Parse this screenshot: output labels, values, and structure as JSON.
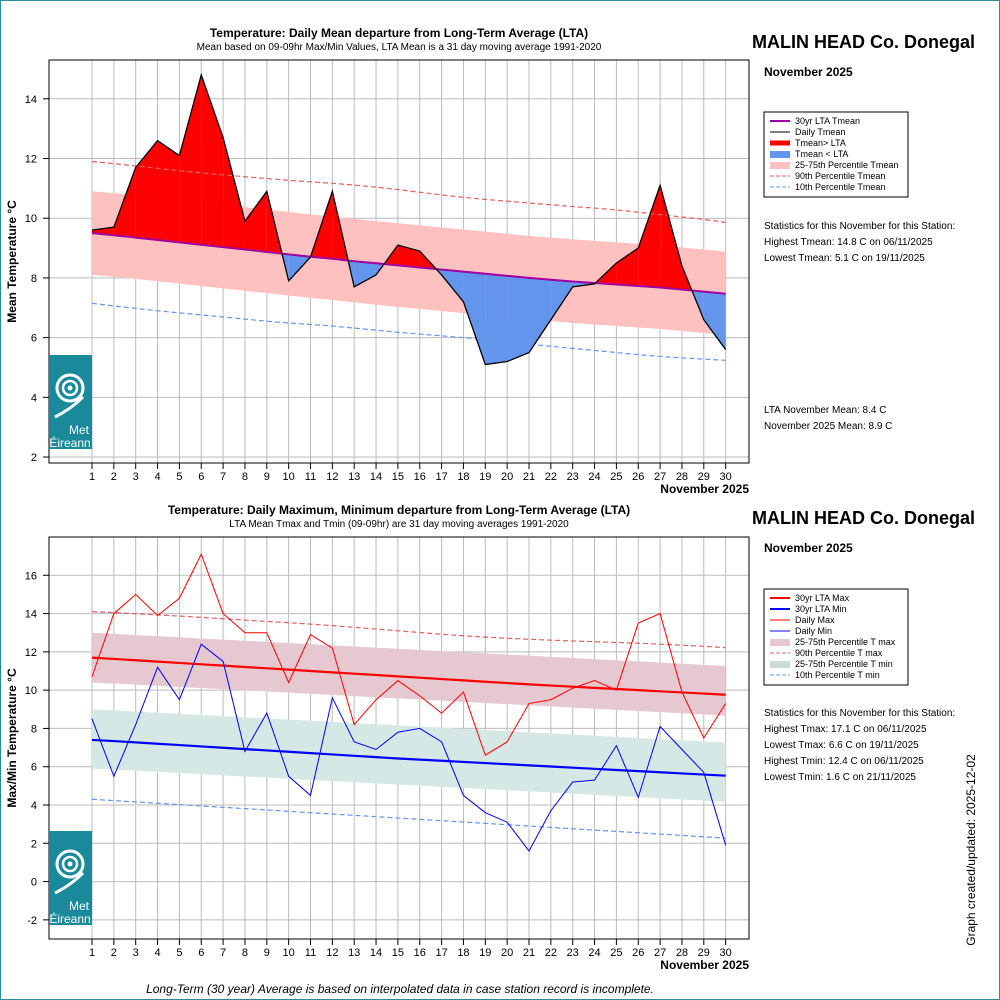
{
  "station": "MALIN HEAD Co. Donegal",
  "month": "November 2025",
  "xaxis_label": "November 2025",
  "footnote": "Long-Term (30 year) Average is based on interpolated data in case station record is incomplete.",
  "credit": "Graph created/updated:  2025-12-02",
  "logo_text": [
    "Met",
    "Éireann"
  ],
  "colors": {
    "above": "#ff0000",
    "below": "#6495ed",
    "band1": "#ffc0c0",
    "lta_mean": "#a000a0",
    "max": "#ff0000",
    "min": "#0000ff",
    "band_max": "#e5c8d0",
    "band_min": "#d5e8e5",
    "logo": "#1a8a9a"
  },
  "chart_data": [
    {
      "type": "area",
      "title": "Temperature: Daily Mean departure from Long-Term Average (LTA)",
      "subtitle": "Mean based on 09-09hr Max/Min Values, LTA Mean is a 31 day moving average 1991-2020",
      "ylabel": "Mean Temperature °C",
      "xlabel": "November 2025",
      "ylim": [
        1.8,
        15.3
      ],
      "yticks": [
        2,
        4,
        6,
        8,
        10,
        12,
        14
      ],
      "x": [
        1,
        2,
        3,
        4,
        5,
        6,
        7,
        8,
        9,
        10,
        11,
        12,
        13,
        14,
        15,
        16,
        17,
        18,
        19,
        20,
        21,
        22,
        23,
        24,
        25,
        26,
        27,
        28,
        29,
        30
      ],
      "series": [
        {
          "name": "Daily Tmean",
          "values": [
            9.6,
            9.7,
            11.7,
            12.6,
            12.1,
            14.8,
            12.7,
            9.9,
            10.9,
            7.9,
            8.7,
            10.9,
            7.7,
            8.1,
            9.1,
            8.9,
            8.1,
            7.2,
            5.1,
            5.2,
            5.5,
            6.6,
            7.7,
            7.8,
            8.5,
            9.0,
            11.1,
            8.4,
            6.6,
            5.6
          ]
        },
        {
          "name": "30yr LTA Tmean",
          "values": [
            9.5,
            9.43,
            9.35,
            9.27,
            9.19,
            9.11,
            9.03,
            8.95,
            8.87,
            8.79,
            8.71,
            8.64,
            8.56,
            8.49,
            8.42,
            8.35,
            8.28,
            8.21,
            8.14,
            8.07,
            8.0,
            7.94,
            7.88,
            7.83,
            7.78,
            7.73,
            7.68,
            7.61,
            7.54,
            7.47
          ]
        },
        {
          "name": "25-75th Percentile Tmean",
          "low": [
            8.1,
            8.04,
            7.97,
            7.89,
            7.81,
            7.73,
            7.65,
            7.57,
            7.49,
            7.41,
            7.33,
            7.26,
            7.18,
            7.1,
            7.03,
            6.96,
            6.89,
            6.82,
            6.75,
            6.68,
            6.61,
            6.55,
            6.49,
            6.44,
            6.39,
            6.34,
            6.29,
            6.22,
            6.15,
            6.1
          ],
          "high": [
            10.9,
            10.84,
            10.77,
            10.69,
            10.61,
            10.53,
            10.45,
            10.37,
            10.29,
            10.21,
            10.13,
            10.06,
            9.98,
            9.9,
            9.83,
            9.76,
            9.69,
            9.62,
            9.55,
            9.48,
            9.41,
            9.35,
            9.29,
            9.24,
            9.19,
            9.14,
            9.09,
            9.02,
            8.95,
            8.88
          ]
        },
        {
          "name": "90th Percentile Tmean",
          "values": [
            11.9,
            11.83,
            11.75,
            11.67,
            11.59,
            11.52,
            11.45,
            11.39,
            11.33,
            11.27,
            11.22,
            11.17,
            11.11,
            11.04,
            10.96,
            10.87,
            10.78,
            10.7,
            10.63,
            10.57,
            10.51,
            10.45,
            10.39,
            10.34,
            10.28,
            10.2,
            10.12,
            10.04,
            9.96,
            9.86
          ]
        },
        {
          "name": "10th Percentile Tmean",
          "values": [
            7.15,
            7.06,
            6.98,
            6.9,
            6.83,
            6.76,
            6.69,
            6.62,
            6.55,
            6.49,
            6.44,
            6.39,
            6.32,
            6.25,
            6.18,
            6.12,
            6.06,
            6.0,
            5.93,
            5.85,
            5.78,
            5.71,
            5.64,
            5.57,
            5.5,
            5.43,
            5.37,
            5.32,
            5.28,
            5.24
          ]
        }
      ],
      "legend": [
        "30yr LTA Tmean",
        "Daily Tmean",
        "Tmean> LTA",
        "Tmean < LTA",
        "25-75th Percentile Tmean",
        "90th Percentile Tmean",
        "10th Percentile Tmean"
      ],
      "stats_heading": "Statistics for this November for this Station:",
      "stats": [
        "Highest Tmean: 14.8 C on 06/11/2025",
        "Lowest Tmean: 5.1 C on 19/11/2025"
      ],
      "summary": [
        "LTA November Mean: 8.4 C",
        "November 2025 Mean: 8.9 C"
      ]
    },
    {
      "type": "line",
      "title": "Temperature: Daily Maximum, Minimum departure from Long-Term Average (LTA)",
      "subtitle": "LTA Mean Tmax and Tmin (09-09hr) are 31 day moving averages 1991-2020",
      "ylabel": "Max/Min Temperature °C",
      "xlabel": "November 2025",
      "ylim": [
        -3,
        18
      ],
      "yticks": [
        -2,
        0,
        2,
        4,
        6,
        8,
        10,
        12,
        14,
        16
      ],
      "x": [
        1,
        2,
        3,
        4,
        5,
        6,
        7,
        8,
        9,
        10,
        11,
        12,
        13,
        14,
        15,
        16,
        17,
        18,
        19,
        20,
        21,
        22,
        23,
        24,
        25,
        26,
        27,
        28,
        29,
        30
      ],
      "series": [
        {
          "name": "Daily Max",
          "values": [
            10.7,
            14.0,
            15.0,
            13.9,
            14.8,
            17.1,
            14.0,
            13.0,
            13.0,
            10.4,
            12.9,
            12.2,
            8.2,
            9.5,
            10.5,
            9.7,
            8.8,
            9.9,
            6.6,
            7.3,
            9.3,
            9.5,
            10.1,
            10.5,
            10.0,
            13.5,
            14.0,
            9.9,
            7.5,
            9.3
          ]
        },
        {
          "name": "Daily Min",
          "values": [
            8.5,
            5.5,
            8.2,
            11.2,
            9.5,
            12.4,
            11.5,
            6.8,
            8.8,
            5.5,
            4.5,
            9.6,
            7.3,
            6.9,
            7.8,
            8.0,
            7.3,
            4.5,
            3.6,
            3.1,
            1.6,
            3.7,
            5.2,
            5.3,
            7.1,
            4.4,
            8.1,
            6.9,
            5.7,
            1.9
          ]
        },
        {
          "name": "30yr LTA Max",
          "values": [
            11.7,
            11.63,
            11.56,
            11.49,
            11.42,
            11.35,
            11.28,
            11.21,
            11.14,
            11.07,
            11.0,
            10.93,
            10.86,
            10.79,
            10.72,
            10.65,
            10.58,
            10.51,
            10.44,
            10.37,
            10.3,
            10.24,
            10.18,
            10.12,
            10.06,
            10.0,
            9.94,
            9.88,
            9.82,
            9.76
          ]
        },
        {
          "name": "30yr LTA Min",
          "values": [
            7.4,
            7.34,
            7.27,
            7.2,
            7.13,
            7.06,
            6.99,
            6.92,
            6.85,
            6.78,
            6.71,
            6.64,
            6.57,
            6.5,
            6.43,
            6.37,
            6.31,
            6.25,
            6.19,
            6.13,
            6.07,
            6.01,
            5.95,
            5.89,
            5.83,
            5.77,
            5.71,
            5.65,
            5.59,
            5.53
          ]
        },
        {
          "name": "25-75th Percentile T max",
          "low": [
            10.4,
            10.35,
            10.29,
            10.23,
            10.17,
            10.11,
            10.05,
            9.99,
            9.93,
            9.87,
            9.81,
            9.75,
            9.69,
            9.63,
            9.57,
            9.51,
            9.45,
            9.39,
            9.33,
            9.27,
            9.21,
            9.15,
            9.09,
            9.03,
            8.97,
            8.91,
            8.85,
            8.79,
            8.73,
            8.67
          ],
          "high": [
            13.0,
            12.94,
            12.88,
            12.82,
            12.76,
            12.7,
            12.64,
            12.58,
            12.52,
            12.46,
            12.4,
            12.34,
            12.28,
            12.22,
            12.16,
            12.1,
            12.04,
            11.98,
            11.92,
            11.86,
            11.8,
            11.74,
            11.68,
            11.62,
            11.56,
            11.5,
            11.44,
            11.38,
            11.32,
            11.26
          ]
        },
        {
          "name": "25-75th Percentile T min",
          "low": [
            5.9,
            5.85,
            5.79,
            5.73,
            5.67,
            5.61,
            5.55,
            5.49,
            5.43,
            5.37,
            5.31,
            5.25,
            5.19,
            5.13,
            5.07,
            5.01,
            4.95,
            4.89,
            4.83,
            4.77,
            4.71,
            4.65,
            4.59,
            4.53,
            4.47,
            4.41,
            4.35,
            4.29,
            4.23,
            4.17
          ],
          "high": [
            9.0,
            8.94,
            8.88,
            8.82,
            8.76,
            8.7,
            8.64,
            8.58,
            8.52,
            8.46,
            8.4,
            8.34,
            8.28,
            8.22,
            8.16,
            8.1,
            8.04,
            7.98,
            7.92,
            7.86,
            7.8,
            7.74,
            7.68,
            7.62,
            7.56,
            7.5,
            7.44,
            7.38,
            7.32,
            7.26
          ]
        },
        {
          "name": "90th Percentile T max",
          "values": [
            14.1,
            14.05,
            13.99,
            13.93,
            13.87,
            13.8,
            13.73,
            13.66,
            13.59,
            13.52,
            13.45,
            13.37,
            13.28,
            13.19,
            13.1,
            13.01,
            12.92,
            12.84,
            12.77,
            12.71,
            12.66,
            12.61,
            12.57,
            12.53,
            12.49,
            12.45,
            12.4,
            12.35,
            12.29,
            12.22
          ]
        },
        {
          "name": "10th Percentile T min",
          "values": [
            4.3,
            4.23,
            4.16,
            4.09,
            4.02,
            3.95,
            3.88,
            3.81,
            3.74,
            3.67,
            3.6,
            3.53,
            3.46,
            3.39,
            3.32,
            3.25,
            3.18,
            3.11,
            3.04,
            2.97,
            2.9,
            2.83,
            2.76,
            2.69,
            2.62,
            2.55,
            2.48,
            2.41,
            2.34,
            2.27
          ]
        }
      ],
      "legend": [
        "30yr LTA Max",
        "30yr LTA Min",
        "Daily Max",
        "Daily Min",
        "25-75th Percentile T max",
        "90th Percentile T max",
        "25-75th Percentile T min",
        "10th Percentile T min"
      ],
      "stats_heading": "Statistics for this November for this Station:",
      "stats": [
        "Highest Tmax: 17.1 C on 06/11/2025",
        "Lowest Tmax: 6.6 C on 19/11/2025",
        "Highest Tmin: 12.4 C on 06/11/2025",
        "Lowest Tmin: 1.6 C on 21/11/2025"
      ]
    }
  ]
}
